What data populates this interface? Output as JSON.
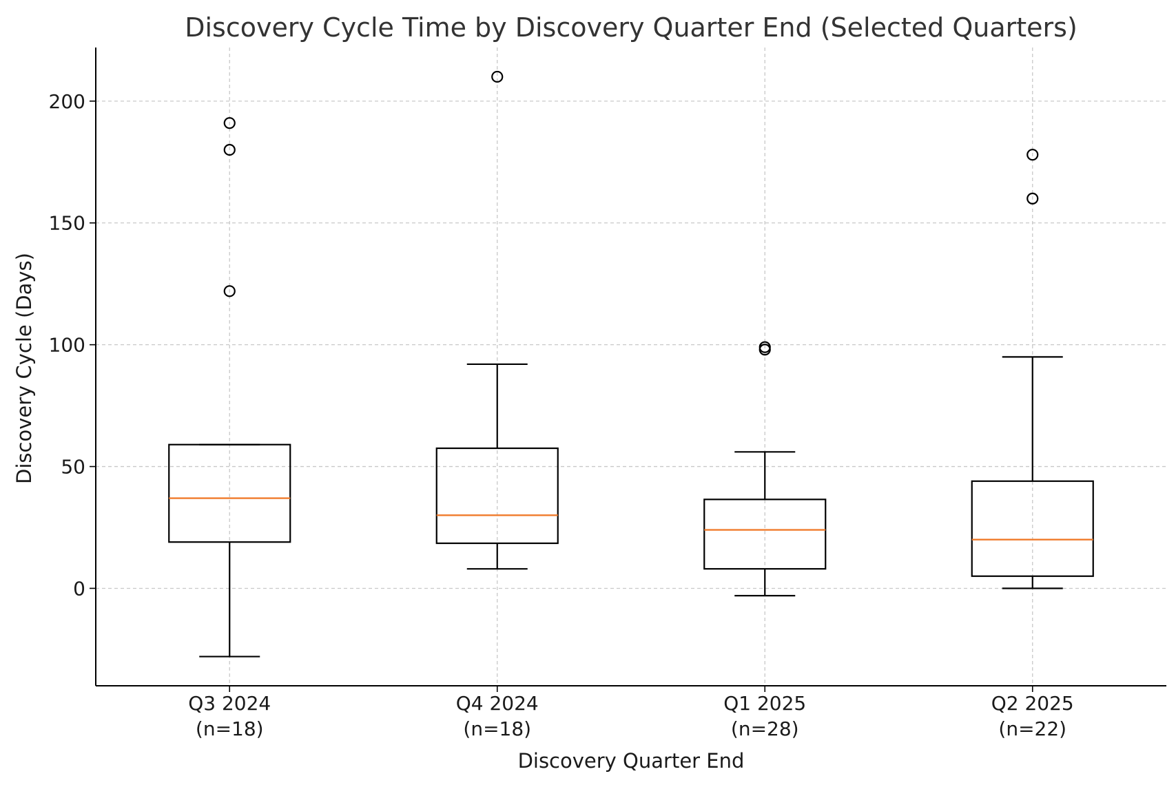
{
  "chart_data": {
    "type": "box",
    "title": "Discovery Cycle Time by Discovery Quarter End (Selected Quarters)",
    "xlabel": "Discovery Quarter End",
    "ylabel": "Discovery Cycle (Days)",
    "ylim": [
      -40,
      222
    ],
    "yticks": [
      0,
      50,
      100,
      150,
      200
    ],
    "grid": true,
    "median_color": "#f07a2a",
    "box_color": "#000000",
    "categories": [
      {
        "label": "Q3 2024",
        "n_label": "(n=18)",
        "whisker_low": -28,
        "q1": 19,
        "median": 37,
        "q3": 59,
        "whisker_high": 59,
        "outliers": [
          122,
          180,
          191
        ]
      },
      {
        "label": "Q4 2024",
        "n_label": "(n=18)",
        "whisker_low": 8,
        "q1": 18.5,
        "median": 30,
        "q3": 57.5,
        "whisker_high": 92,
        "outliers": [
          210
        ]
      },
      {
        "label": "Q1 2025",
        "n_label": "(n=28)",
        "whisker_low": -3,
        "q1": 8,
        "median": 24,
        "q3": 36.5,
        "whisker_high": 56,
        "outliers": [
          98,
          99
        ]
      },
      {
        "label": "Q2 2025",
        "n_label": "(n=22)",
        "whisker_low": 0,
        "q1": 5,
        "median": 20,
        "q3": 44,
        "whisker_high": 95,
        "outliers": [
          160,
          178
        ]
      }
    ]
  }
}
